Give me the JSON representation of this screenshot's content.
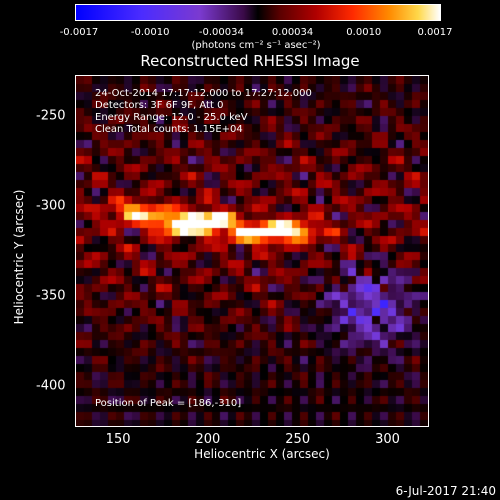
{
  "colorbar": {
    "ticks": [
      "-0.0017",
      "-0.0010",
      "-0.00034",
      "0.00034",
      "0.0010",
      "0.0017"
    ],
    "unit": "(photons cm⁻² s⁻¹ asec⁻²)"
  },
  "title": "Reconstructed RHESSI Image",
  "annotations": {
    "time": "24-Oct-2014 17:17:12.000 to 17:27:12.000",
    "detectors": "Detectors: 3F 6F 9F, Att 0",
    "energy": "Energy Range: 12.0 - 25.0 keV",
    "method": "Clean    Total counts: 1.15E+04",
    "peak": "Position of Peak = [186,-310]"
  },
  "chart_data": {
    "type": "heatmap",
    "title": "Reconstructed RHESSI Image",
    "xlabel": "Heliocentric X (arcsec)",
    "ylabel": "Heliocentric Y (arcsec)",
    "xlim": [
      126,
      322
    ],
    "ylim": [
      -422,
      -227
    ],
    "xticks": [
      "150",
      "200",
      "250",
      "300"
    ],
    "yticks": [
      "-250",
      "-300",
      "-350",
      "-400"
    ],
    "clim": [
      -0.0017,
      0.0017
    ],
    "colormap": "blue-black-red-yellow-white",
    "peak": [
      186,
      -310
    ],
    "sources": [
      {
        "x": 186,
        "y": -310,
        "value": 0.0017
      },
      {
        "x": 200,
        "y": -308,
        "value": 0.0016
      },
      {
        "x": 245,
        "y": -313,
        "value": 0.0015
      },
      {
        "x": 160,
        "y": -303,
        "value": 0.0013
      },
      {
        "x": 225,
        "y": -315,
        "value": 0.0012
      }
    ],
    "negative_region": {
      "x": 290,
      "y": -355,
      "value": -0.0007
    }
  },
  "timestamp": "6-Jul-2017 21:40"
}
